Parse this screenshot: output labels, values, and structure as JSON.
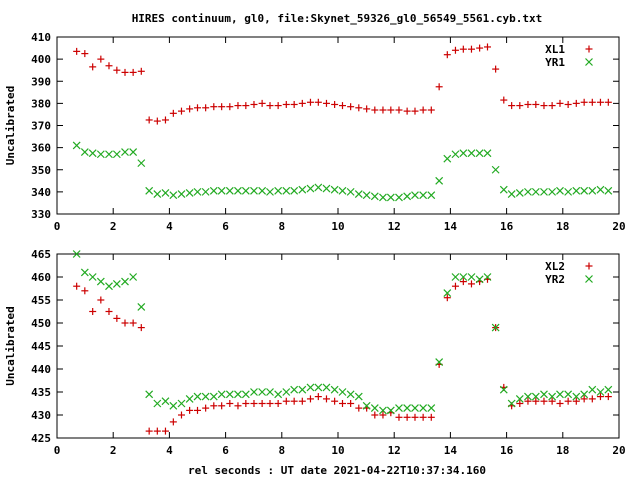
{
  "title": "HIRES continuum, gl0, file:Skynet_59326_gl0_56549_5561.cyb.txt",
  "xlabel": "rel seconds : UT date 2021-04-22T10:37:34.160",
  "chart_data": [
    {
      "type": "scatter",
      "ylabel": "Uncalibrated",
      "xlim": [
        0,
        20
      ],
      "ylim": [
        330,
        410
      ],
      "xticks": [
        "0",
        "2",
        "4",
        "6",
        "8",
        "10",
        "12",
        "14",
        "16",
        "18",
        "20"
      ],
      "yticks": [
        "330",
        "340",
        "350",
        "360",
        "370",
        "380",
        "390",
        "400",
        "410"
      ],
      "grid": false,
      "legend_position": "top-right",
      "series": [
        {
          "name": "XL1",
          "marker": "plus",
          "color": "#cc0000",
          "x": [
            0.7,
            0.99,
            1.27,
            1.56,
            1.85,
            2.13,
            2.42,
            2.71,
            3.0,
            3.28,
            3.57,
            3.86,
            4.14,
            4.43,
            4.72,
            5.0,
            5.29,
            5.58,
            5.86,
            6.15,
            6.44,
            6.72,
            7.01,
            7.3,
            7.58,
            7.87,
            8.16,
            8.44,
            8.73,
            9.02,
            9.3,
            9.59,
            9.88,
            10.16,
            10.45,
            10.74,
            11.02,
            11.31,
            11.6,
            11.88,
            12.17,
            12.46,
            12.74,
            13.03,
            13.32,
            13.6,
            13.89,
            14.18,
            14.46,
            14.75,
            15.04,
            15.32,
            15.61,
            15.9,
            16.18,
            16.47,
            16.76,
            17.04,
            17.33,
            17.62,
            17.9,
            18.19,
            18.48,
            18.76,
            19.05,
            19.34,
            19.62
          ],
          "values": [
            403.5,
            402.5,
            396.5,
            400.0,
            397.0,
            395.0,
            394.0,
            394.0,
            394.5,
            372.5,
            372.0,
            372.5,
            375.5,
            376.5,
            377.5,
            378.0,
            378.0,
            378.5,
            378.5,
            378.5,
            379.0,
            379.0,
            379.5,
            380.0,
            379.0,
            379.0,
            379.5,
            379.5,
            380.0,
            380.5,
            380.5,
            380.0,
            379.5,
            379.0,
            378.5,
            378.0,
            377.5,
            377.0,
            377.0,
            377.0,
            377.0,
            376.5,
            376.5,
            377.0,
            377.0,
            387.5,
            402.0,
            404.0,
            404.5,
            404.5,
            405.0,
            405.5,
            395.5,
            381.5,
            379.0,
            379.0,
            379.5,
            379.5,
            379.0,
            379.0,
            380.0,
            379.5,
            380.0,
            380.5,
            380.5,
            380.5,
            380.5
          ]
        },
        {
          "name": "YR1",
          "marker": "cross",
          "color": "#22aa22",
          "x": [
            0.7,
            0.99,
            1.27,
            1.56,
            1.85,
            2.13,
            2.42,
            2.71,
            3.0,
            3.28,
            3.57,
            3.86,
            4.14,
            4.43,
            4.72,
            5.0,
            5.29,
            5.58,
            5.86,
            6.15,
            6.44,
            6.72,
            7.01,
            7.3,
            7.58,
            7.87,
            8.16,
            8.44,
            8.73,
            9.02,
            9.3,
            9.59,
            9.88,
            10.16,
            10.45,
            10.74,
            11.02,
            11.31,
            11.6,
            11.88,
            12.17,
            12.46,
            12.74,
            13.03,
            13.32,
            13.6,
            13.89,
            14.18,
            14.46,
            14.75,
            15.04,
            15.32,
            15.61,
            15.9,
            16.18,
            16.47,
            16.76,
            17.04,
            17.33,
            17.62,
            17.9,
            18.19,
            18.48,
            18.76,
            19.05,
            19.34,
            19.62
          ],
          "values": [
            361.0,
            358.0,
            357.5,
            357.0,
            357.0,
            357.0,
            358.0,
            358.0,
            353.0,
            340.5,
            339.0,
            339.5,
            338.5,
            339.0,
            339.5,
            340.0,
            340.0,
            340.5,
            340.5,
            340.5,
            340.5,
            340.5,
            340.5,
            340.5,
            340.0,
            340.5,
            340.5,
            340.5,
            341.0,
            341.5,
            342.0,
            341.5,
            341.0,
            340.5,
            340.0,
            339.0,
            338.5,
            338.0,
            337.5,
            337.5,
            337.5,
            338.0,
            338.5,
            338.5,
            338.5,
            345.0,
            355.0,
            357.0,
            357.5,
            357.5,
            357.5,
            357.5,
            350.0,
            341.0,
            339.0,
            339.5,
            340.0,
            340.0,
            340.0,
            340.0,
            340.5,
            340.0,
            340.5,
            340.5,
            340.5,
            341.0,
            340.5
          ]
        }
      ]
    },
    {
      "type": "scatter",
      "ylabel": "Uncalibrated",
      "xlim": [
        0,
        20
      ],
      "ylim": [
        425,
        465
      ],
      "xticks": [
        "0",
        "2",
        "4",
        "6",
        "8",
        "10",
        "12",
        "14",
        "16",
        "18",
        "20"
      ],
      "yticks": [
        "425",
        "430",
        "435",
        "440",
        "445",
        "450",
        "455",
        "460",
        "465"
      ],
      "grid": false,
      "legend_position": "top-right",
      "series": [
        {
          "name": "XL2",
          "marker": "plus",
          "color": "#cc0000",
          "x": [
            0.7,
            0.99,
            1.27,
            1.56,
            1.85,
            2.13,
            2.42,
            2.71,
            3.0,
            3.28,
            3.57,
            3.86,
            4.14,
            4.43,
            4.72,
            5.0,
            5.29,
            5.58,
            5.86,
            6.15,
            6.44,
            6.72,
            7.01,
            7.3,
            7.58,
            7.87,
            8.16,
            8.44,
            8.73,
            9.02,
            9.3,
            9.59,
            9.88,
            10.16,
            10.45,
            10.74,
            11.02,
            11.31,
            11.6,
            11.88,
            12.17,
            12.46,
            12.74,
            13.03,
            13.32,
            13.6,
            13.89,
            14.18,
            14.46,
            14.75,
            15.04,
            15.32,
            15.61,
            15.9,
            16.18,
            16.47,
            16.76,
            17.04,
            17.33,
            17.62,
            17.9,
            18.19,
            18.48,
            18.76,
            19.05,
            19.34,
            19.62
          ],
          "values": [
            458.0,
            457.0,
            452.5,
            455.0,
            452.5,
            451.0,
            450.0,
            450.0,
            449.0,
            426.5,
            426.5,
            426.5,
            428.5,
            430.0,
            431.0,
            431.0,
            431.5,
            432.0,
            432.0,
            432.5,
            432.0,
            432.5,
            432.5,
            432.5,
            432.5,
            432.5,
            433.0,
            433.0,
            433.0,
            433.5,
            434.0,
            433.5,
            433.0,
            432.5,
            432.5,
            431.5,
            431.5,
            430.0,
            430.0,
            430.5,
            429.5,
            429.5,
            429.5,
            429.5,
            429.5,
            441.0,
            455.5,
            458.0,
            459.0,
            458.5,
            459.0,
            459.5,
            449.0,
            436.0,
            432.0,
            432.5,
            433.0,
            433.0,
            433.0,
            433.0,
            432.5,
            433.0,
            433.0,
            433.5,
            433.5,
            434.0,
            434.0
          ]
        },
        {
          "name": "YR2",
          "marker": "cross",
          "color": "#22aa22",
          "x": [
            0.7,
            0.99,
            1.27,
            1.56,
            1.85,
            2.13,
            2.42,
            2.71,
            3.0,
            3.28,
            3.57,
            3.86,
            4.14,
            4.43,
            4.72,
            5.0,
            5.29,
            5.58,
            5.86,
            6.15,
            6.44,
            6.72,
            7.01,
            7.3,
            7.58,
            7.87,
            8.16,
            8.44,
            8.73,
            9.02,
            9.3,
            9.59,
            9.88,
            10.16,
            10.45,
            10.74,
            11.02,
            11.31,
            11.6,
            11.88,
            12.17,
            12.46,
            12.74,
            13.03,
            13.32,
            13.6,
            13.89,
            14.18,
            14.46,
            14.75,
            15.04,
            15.32,
            15.61,
            15.9,
            16.18,
            16.47,
            16.76,
            17.04,
            17.33,
            17.62,
            17.9,
            18.19,
            18.48,
            18.76,
            19.05,
            19.34,
            19.62
          ],
          "values": [
            465.0,
            461.0,
            460.0,
            459.0,
            458.0,
            458.5,
            459.0,
            460.0,
            453.5,
            434.5,
            432.5,
            433.0,
            432.0,
            432.5,
            433.5,
            434.0,
            434.0,
            434.0,
            434.5,
            434.5,
            434.5,
            434.5,
            435.0,
            435.0,
            435.0,
            434.5,
            435.0,
            435.5,
            435.5,
            436.0,
            436.0,
            436.0,
            435.5,
            435.0,
            434.5,
            434.0,
            432.0,
            431.5,
            431.0,
            431.0,
            431.5,
            431.5,
            431.5,
            431.5,
            431.5,
            441.5,
            456.5,
            460.0,
            460.0,
            460.0,
            459.5,
            460.0,
            449.0,
            435.5,
            432.5,
            433.5,
            434.0,
            434.0,
            434.5,
            434.0,
            434.5,
            434.5,
            434.0,
            434.5,
            435.5,
            435.0,
            435.5
          ]
        }
      ]
    }
  ]
}
